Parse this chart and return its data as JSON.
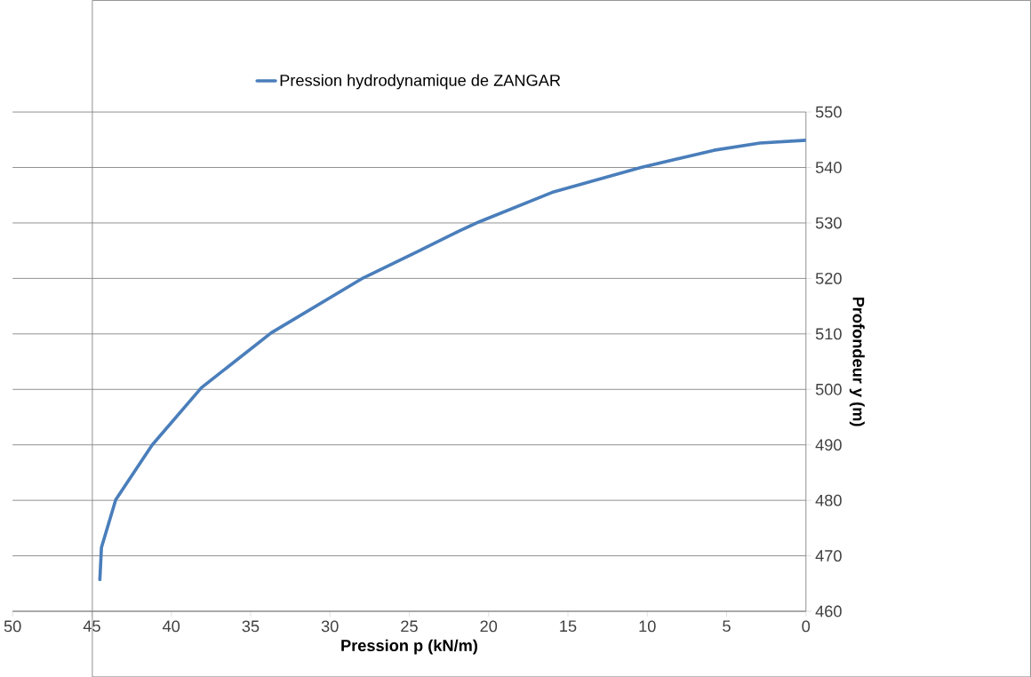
{
  "chart_data": {
    "type": "line",
    "xlabel": "Pression p (kN/m)",
    "ylabel": "Profondeur y (m)",
    "series": [
      {
        "name": "Pression hydrodynamique de ZANGAR",
        "color": "#4a7ebb",
        "x": [
          44.5,
          44.4,
          43.5,
          41.2,
          38.1,
          33.7,
          27.9,
          24.5,
          21.9,
          20.6,
          16.0,
          10.4,
          5.8,
          2.9,
          0
        ],
        "values": [
          465.7,
          471.5,
          480.1,
          490.0,
          500.3,
          510.2,
          520.1,
          524.8,
          528.5,
          530.2,
          535.5,
          540.0,
          543.1,
          544.4,
          544.9
        ]
      }
    ],
    "xlim": [
      50,
      0
    ],
    "xticks": [
      50,
      45,
      40,
      35,
      30,
      25,
      20,
      15,
      10,
      5,
      0
    ],
    "ylim": [
      460,
      550
    ],
    "yticks": [
      460,
      470,
      480,
      490,
      500,
      510,
      520,
      530,
      540,
      550
    ],
    "grid": "y",
    "legend": "top",
    "marker": "none",
    "line_style": "solid"
  }
}
